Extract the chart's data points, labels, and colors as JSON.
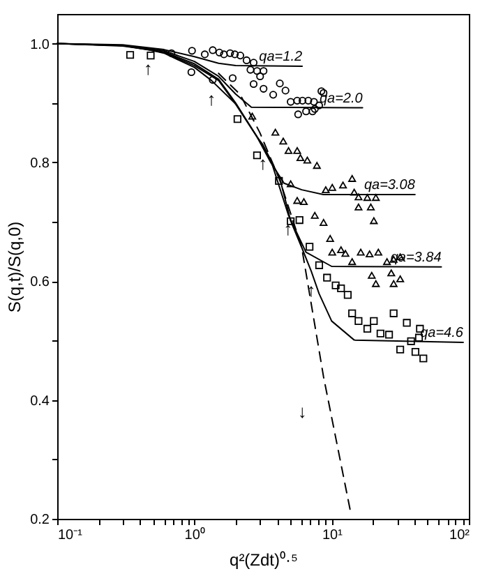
{
  "chart_data": {
    "type": "scatter",
    "xlabel": "q²(Zdt)⁰·⁵",
    "ylabel": "S(q,t)/S(q,0)",
    "log": "x",
    "xlim": [
      0.1,
      100
    ],
    "ylim": [
      0.2,
      1.05
    ],
    "xticks": [
      {
        "value": 0.1,
        "label": "10⁻¹"
      },
      {
        "value": 0.2,
        "label": null
      },
      {
        "value": 0.3,
        "label": null
      },
      {
        "value": 0.4,
        "label": null
      },
      {
        "value": 0.5,
        "label": null
      },
      {
        "value": 0.6,
        "label": null
      },
      {
        "value": 0.7,
        "label": null
      },
      {
        "value": 0.8,
        "label": null
      },
      {
        "value": 0.9,
        "label": null
      },
      {
        "value": 1,
        "label": "10⁰"
      },
      {
        "value": 2,
        "label": null
      },
      {
        "value": 3,
        "label": null
      },
      {
        "value": 4,
        "label": null
      },
      {
        "value": 5,
        "label": null
      },
      {
        "value": 6,
        "label": null
      },
      {
        "value": 7,
        "label": null
      },
      {
        "value": 8,
        "label": null
      },
      {
        "value": 9,
        "label": null
      },
      {
        "value": 10,
        "label": "10¹"
      },
      {
        "value": 20,
        "label": null
      },
      {
        "value": 30,
        "label": null
      },
      {
        "value": 40,
        "label": null
      },
      {
        "value": 50,
        "label": null
      },
      {
        "value": 60,
        "label": null
      },
      {
        "value": 70,
        "label": null
      },
      {
        "value": 80,
        "label": null
      },
      {
        "value": 90,
        "label": null
      },
      {
        "value": 100,
        "label": "10²"
      }
    ],
    "yticks": [
      {
        "value": 0.2,
        "label": "0.2"
      },
      {
        "value": 0.3,
        "label": null
      },
      {
        "value": 0.4,
        "label": "0.4"
      },
      {
        "value": 0.5,
        "label": null
      },
      {
        "value": 0.6,
        "label": "0.6"
      },
      {
        "value": 0.7,
        "label": null
      },
      {
        "value": 0.8,
        "label": "0.8"
      },
      {
        "value": 0.9,
        "label": null
      },
      {
        "value": 1.0,
        "label": "1.0"
      }
    ],
    "grid": false,
    "series": [
      {
        "type": "line",
        "color": "#000000",
        "line_style": "solid",
        "x": [
          0.1,
          0.3,
          0.6,
          1,
          1.5,
          2,
          6.1
        ],
        "values": [
          1.0,
          0.998,
          0.99,
          0.978,
          0.967,
          0.963,
          0.962
        ]
      },
      {
        "type": "line",
        "color": "#000000",
        "line_style": "solid",
        "x": [
          0.1,
          0.3,
          0.6,
          1,
          1.5,
          2,
          2.6,
          16.8
        ],
        "values": [
          1.0,
          0.997,
          0.988,
          0.97,
          0.945,
          0.915,
          0.893,
          0.892
        ]
      },
      {
        "type": "line",
        "color": "#000000",
        "line_style": "solid",
        "x": [
          0.1,
          0.3,
          0.6,
          1,
          1.5,
          2,
          2.86,
          3.6,
          4.5,
          6.05,
          8.7,
          40.5
        ],
        "values": [
          1.0,
          0.997,
          0.986,
          0.966,
          0.94,
          0.9,
          0.843,
          0.8,
          0.765,
          0.754,
          0.746,
          0.746
        ]
      },
      {
        "type": "line",
        "color": "#000000",
        "line_style": "solid",
        "x": [
          0.1,
          0.3,
          0.6,
          1,
          1.5,
          2,
          2.86,
          3.6,
          4.85,
          6.5,
          10,
          63
        ],
        "values": [
          1.0,
          0.997,
          0.985,
          0.963,
          0.938,
          0.898,
          0.843,
          0.804,
          0.711,
          0.649,
          0.625,
          0.624
        ]
      },
      {
        "type": "line",
        "color": "#000000",
        "line_style": "solid",
        "x": [
          0.1,
          0.3,
          0.46,
          0.6,
          1,
          1.33,
          2.01,
          2.86,
          3.15,
          3.6,
          4.19,
          4.8,
          5.0,
          6.05,
          7.1,
          8.1,
          10,
          14.6,
          91
        ],
        "values": [
          1.0,
          0.996,
          0.99,
          0.984,
          0.96,
          0.938,
          0.898,
          0.843,
          0.83,
          0.804,
          0.773,
          0.72,
          0.703,
          0.657,
          0.617,
          0.579,
          0.533,
          0.501,
          0.497
        ]
      },
      {
        "type": "line",
        "color": "#000000",
        "line_style": "dashed",
        "x": [
          1.5,
          2.16,
          3,
          4.19,
          6.05,
          8.73,
          13.7
        ],
        "values": [
          0.95,
          0.914,
          0.85,
          0.77,
          0.657,
          0.439,
          0.213
        ]
      },
      {
        "marker": "circle",
        "color": "#000000",
        "x": [
          0.68,
          0.96,
          1.19,
          1.36,
          1.52,
          1.64,
          1.82,
          1.97,
          2.16,
          2.4,
          2.7,
          2.56,
          2.86,
          3.19,
          3.01
        ],
        "values": [
          0.984,
          0.988,
          0.982,
          0.989,
          0.985,
          0.982,
          0.984,
          0.982,
          0.98,
          0.972,
          0.968,
          0.956,
          0.954,
          0.954,
          0.945
        ]
      },
      {
        "marker": "circle",
        "color": "#000000",
        "x": [
          0.95,
          1.9,
          1.36,
          2.7,
          3.19,
          3.75,
          4.19,
          4.61,
          5.03,
          5.61,
          6.13,
          6.76,
          7.43,
          8.11,
          5.7,
          6.51,
          7.54,
          8.42,
          8.73,
          7.26
        ],
        "values": [
          0.952,
          0.942,
          0.939,
          0.932,
          0.924,
          0.914,
          0.933,
          0.921,
          0.902,
          0.904,
          0.904,
          0.904,
          0.902,
          0.896,
          0.881,
          0.886,
          0.89,
          0.92,
          0.917,
          0.886
        ]
      },
      {
        "marker": "triangle",
        "color": "#000000",
        "x": [
          2.64,
          3.89,
          4.44,
          4.85,
          5.61,
          5.92,
          6.65,
          7.81,
          10.1,
          12.1,
          14.1,
          9.06,
          15.7,
          21.0,
          18.2,
          15.7,
          19.3,
          20.3,
          14.6
        ],
        "values": [
          0.878,
          0.851,
          0.836,
          0.82,
          0.82,
          0.808,
          0.804,
          0.795,
          0.758,
          0.762,
          0.773,
          0.754,
          0.742,
          0.741,
          0.741,
          0.725,
          0.725,
          0.702,
          0.75
        ]
      },
      {
        "marker": "triangle",
        "color": "#000000",
        "x": [
          5.03,
          5.61,
          6.27,
          7.54,
          8.73,
          9.75,
          10.1,
          11.7,
          12.6,
          14.1,
          16.3,
          18.9,
          21.9,
          19.6,
          21.0,
          25.3,
          28.3,
          27.2,
          31.6,
          28.3,
          31.6
        ],
        "values": [
          0.764,
          0.736,
          0.734,
          0.711,
          0.699,
          0.672,
          0.649,
          0.653,
          0.647,
          0.633,
          0.649,
          0.646,
          0.649,
          0.61,
          0.596,
          0.633,
          0.637,
          0.614,
          0.641,
          0.596,
          0.604
        ]
      },
      {
        "marker": "square",
        "color": "#000000",
        "x": [
          0.34,
          0.48,
          2.06,
          2.86,
          4.13,
          5.03,
          5.83,
          6.9,
          8.11,
          9.26,
          10.7,
          11.7,
          13.1,
          14.1,
          15.7,
          18.2,
          20.3,
          22.7,
          28.3,
          26.2,
          35.3,
          31.6,
          37.9,
          43.3,
          40.8,
          46.6,
          44.0
        ],
        "values": [
          0.981,
          0.98,
          0.873,
          0.812,
          0.769,
          0.701,
          0.703,
          0.658,
          0.627,
          0.606,
          0.593,
          0.588,
          0.577,
          0.546,
          0.533,
          0.52,
          0.533,
          0.512,
          0.546,
          0.51,
          0.53,
          0.485,
          0.499,
          0.505,
          0.481,
          0.47,
          0.52
        ]
      }
    ],
    "annotations": [
      "qa=1.2",
      "qa=2.0",
      "qa=3.08",
      "qa=3.84",
      "qa=4.6",
      {
        "text": "↑",
        "x": 0.46,
        "y": 0.99
      },
      {
        "text": "↑",
        "x": 1.33,
        "y": 0.938
      },
      {
        "text": "↑",
        "x": 3.15,
        "y": 0.83
      },
      {
        "text": "↑",
        "x": 4.8,
        "y": 0.72
      },
      {
        "text": "↑",
        "x": 7.1,
        "y": 0.617
      },
      "↓"
    ]
  }
}
